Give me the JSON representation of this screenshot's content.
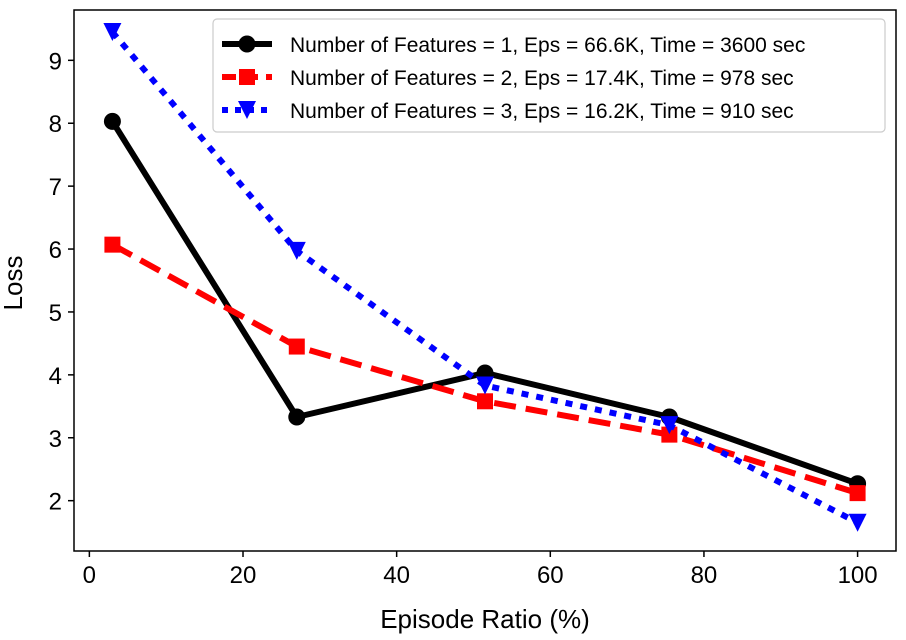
{
  "chart_data": {
    "type": "line",
    "xlabel": "Episode Ratio (%)",
    "ylabel": "Loss",
    "xlim": [
      -2,
      105
    ],
    "ylim": [
      1.2,
      9.8
    ],
    "xticks": [
      0,
      20,
      40,
      60,
      80,
      100
    ],
    "yticks": [
      2,
      3,
      4,
      5,
      6,
      7,
      8,
      9
    ],
    "grid": false,
    "legend_position": "top-right",
    "x": [
      3,
      27,
      51.5,
      75.5,
      100
    ],
    "series": [
      {
        "name": "Number of Features = 1, Eps = 66.6K, Time = 3600 sec",
        "values": [
          8.03,
          3.33,
          4.03,
          3.33,
          2.27
        ],
        "color": "#000000",
        "line_style": "solid",
        "marker": "circle"
      },
      {
        "name": "Number of Features = 2, Eps = 17.4K, Time = 978 sec",
        "values": [
          6.07,
          4.45,
          3.58,
          3.05,
          2.12
        ],
        "color": "#ff0000",
        "line_style": "dashed",
        "marker": "square"
      },
      {
        "name": "Number of Features = 3, Eps = 16.2K, Time = 910 sec",
        "values": [
          9.45,
          5.97,
          3.83,
          3.2,
          1.65
        ],
        "color": "#0000ff",
        "line_style": "dotted",
        "marker": "triangle-down"
      }
    ]
  }
}
